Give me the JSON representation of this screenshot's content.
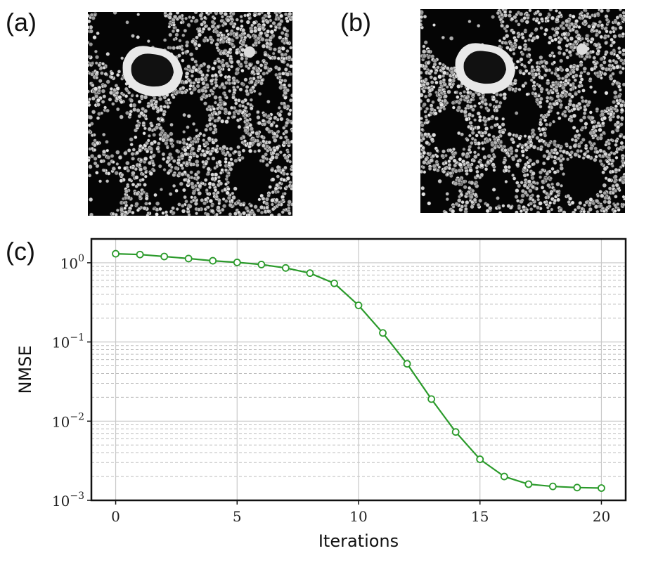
{
  "panels": {
    "a": {
      "label": "(a)"
    },
    "b": {
      "label": "(b)"
    },
    "c": {
      "label": "(c)"
    }
  },
  "images": {
    "left_description_colors": {
      "background": "#050505",
      "particle": "#bdbdbd"
    }
  },
  "chart_data": {
    "type": "line",
    "title": "",
    "xlabel": "Iterations",
    "ylabel": "NMSE",
    "xlim": [
      -1,
      21
    ],
    "ylim": [
      0.001,
      2.0
    ],
    "yscale": "log",
    "xticks": [
      0,
      5,
      10,
      15,
      20
    ],
    "xtick_labels": [
      "0",
      "5",
      "10",
      "15",
      "20"
    ],
    "yticks": [
      0.001,
      0.01,
      0.1,
      1
    ],
    "ytick_labels": [
      {
        "base": "10",
        "exp": "−3"
      },
      {
        "base": "10",
        "exp": "−2"
      },
      {
        "base": "10",
        "exp": "−1"
      },
      {
        "base": "10",
        "exp": "0"
      }
    ],
    "grid": true,
    "series": [
      {
        "color": "#2a9a2a",
        "marker": "circle-open",
        "x": [
          0,
          1,
          2,
          3,
          4,
          5,
          6,
          7,
          8,
          9,
          10,
          11,
          12,
          13,
          14,
          15,
          16,
          17,
          18,
          19,
          20
        ],
        "y": [
          1.3,
          1.27,
          1.2,
          1.13,
          1.06,
          1.01,
          0.95,
          0.86,
          0.74,
          0.55,
          0.29,
          0.13,
          0.053,
          0.019,
          0.0073,
          0.0033,
          0.002,
          0.0016,
          0.0015,
          0.00145,
          0.00143
        ]
      }
    ]
  }
}
